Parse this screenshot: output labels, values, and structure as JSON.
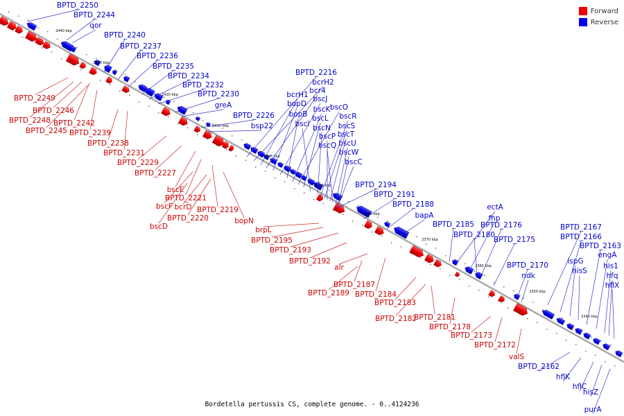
{
  "caption": "Bordetella pertussis CS, complete genome. - 0..4124236",
  "legend": [
    {
      "label": "Forward",
      "color": "#ee0000"
    },
    {
      "label": "Reverse",
      "color": "#0000ee"
    }
  ],
  "ticks": [
    "2440 kbp",
    "2430 kbp",
    "2420 kbp",
    "2410 kbp",
    "2400 kbp",
    "2390 kbp",
    "2380 kbp",
    "2370 kbp",
    "2360 kbp",
    "2350 kbp",
    "2340 kbp"
  ],
  "reverse_labels": [
    "BPTD_2250",
    "BPTD_2244",
    "qor",
    "BPTD_2240",
    "BPTD_2237",
    "BPTD_2236",
    "BPTD_2235",
    "BPTD_2234",
    "BPTD_2232",
    "BPTD_2230",
    "greA",
    "BPTD_2226",
    "bsp22",
    "BPTD_2216",
    "bcrH2",
    "bcrH1",
    "bcr4",
    "bopD",
    "bscJ",
    "bopB",
    "bscK",
    "bscO",
    "bscL",
    "bscI",
    "bscN",
    "bscR",
    "bscS",
    "bscP",
    "bscT",
    "bscQ",
    "bscU",
    "bscW",
    "bscC",
    "BPTD_2194",
    "BPTD_2191",
    "BPTD_2188",
    "bapA",
    "BPTD_2185",
    "ectA",
    "fhp",
    "BPTD_2180",
    "BPTD_2176",
    "BPTD_2175",
    "BPTD_2170",
    "ndk",
    "BPTD_2167",
    "BPTD_2166",
    "ispG",
    "hisS",
    "BPTD_2163",
    "engA",
    "his1",
    "hfq",
    "hflX",
    "BPTD_2162",
    "hflK",
    "hflC",
    "hisZ",
    "purA"
  ],
  "forward_labels": [
    "BPTD_2249",
    "BPTD_2246",
    "BPTD_2248",
    "BPTD_2242",
    "BPTD_2245",
    "BPTD_2239",
    "BPTD_2238",
    "BPTD_2231",
    "BPTD_2229",
    "BPTD_2227",
    "bscE",
    "BPTD_2221",
    "bscF",
    "bcrD",
    "BPTD_2219",
    "BPTD_2220",
    "bscD",
    "bopN",
    "brpL",
    "BPTD_2195",
    "BPTD_2193",
    "BPTD_2192",
    "alr",
    "BPTD_2187",
    "BPTD_2189",
    "BPTD_2184",
    "BPTD_2183",
    "BPTD_2182",
    "BPTD_2181",
    "BPTD_2178",
    "BPTD_2173",
    "BPTD_2172",
    "valS"
  ]
}
